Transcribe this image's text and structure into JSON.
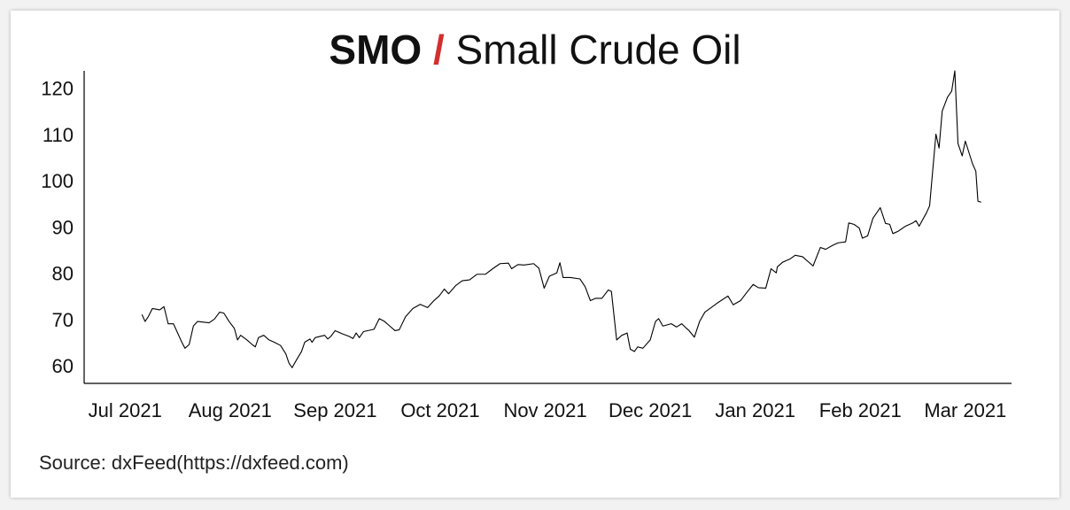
{
  "chart_data": {
    "type": "line",
    "title": {
      "ticker": "SMO",
      "separator": "/",
      "name": "Small Crude Oil"
    },
    "source": "Source: dxFeed(https://dxfeed.com)",
    "xlim": [
      -0.39,
      8.44
    ],
    "xticks": [
      {
        "value": 0,
        "label": "Jul 2021"
      },
      {
        "value": 1,
        "label": "Aug 2021"
      },
      {
        "value": 2,
        "label": "Sep 2021"
      },
      {
        "value": 3,
        "label": "Oct 2021"
      },
      {
        "value": 4,
        "label": "Nov 2021"
      },
      {
        "value": 5,
        "label": "Dec 2021"
      },
      {
        "value": 6,
        "label": "Jan 2021"
      },
      {
        "value": 7,
        "label": "Feb 2021"
      },
      {
        "value": 8,
        "label": "Mar 2021"
      }
    ],
    "ylim": [
      56.6,
      124.2
    ],
    "yticks": [
      60,
      70,
      80,
      90,
      100,
      110,
      120
    ],
    "grid": false,
    "series": [
      {
        "name": "SMO",
        "color": "#000000",
        "x": [
          0.16,
          0.19,
          0.22,
          0.26,
          0.33,
          0.37,
          0.41,
          0.46,
          0.54,
          0.57,
          0.61,
          0.65,
          0.69,
          0.8,
          0.85,
          0.9,
          0.94,
          0.99,
          1.04,
          1.07,
          1.1,
          1.16,
          1.21,
          1.24,
          1.27,
          1.32,
          1.37,
          1.42,
          1.48,
          1.53,
          1.56,
          1.59,
          1.64,
          1.68,
          1.71,
          1.76,
          1.78,
          1.81,
          1.9,
          1.93,
          1.96,
          2.0,
          2.07,
          2.13,
          2.17,
          2.2,
          2.23,
          2.27,
          2.37,
          2.42,
          2.47,
          2.52,
          2.57,
          2.61,
          2.67,
          2.74,
          2.81,
          2.88,
          2.94,
          2.99,
          3.04,
          3.08,
          3.15,
          3.21,
          3.28,
          3.35,
          3.43,
          3.5,
          3.57,
          3.65,
          3.68,
          3.74,
          3.8,
          3.89,
          3.94,
          3.99,
          4.04,
          4.11,
          4.14,
          4.17,
          4.24,
          4.33,
          4.38,
          4.43,
          4.48,
          4.54,
          4.6,
          4.63,
          4.68,
          4.73,
          4.78,
          4.81,
          4.85,
          4.88,
          4.93,
          5.0,
          5.05,
          5.08,
          5.12,
          5.2,
          5.25,
          5.3,
          5.34,
          5.37,
          5.42,
          5.47,
          5.52,
          5.64,
          5.74,
          5.79,
          5.86,
          5.91,
          5.98,
          6.03,
          6.1,
          6.15,
          6.2,
          6.21,
          6.26,
          6.33,
          6.38,
          6.45,
          6.55,
          6.62,
          6.67,
          6.74,
          6.79,
          6.86,
          6.89,
          6.94,
          6.99,
          7.02,
          7.07,
          7.12,
          7.19,
          7.24,
          7.28,
          7.31,
          7.36,
          7.43,
          7.5,
          7.53,
          7.56,
          7.63,
          7.66,
          7.72,
          7.75,
          7.78,
          7.83,
          7.87,
          7.9,
          7.93,
          7.97,
          8.0,
          8.07,
          8.1,
          8.12,
          8.15
        ],
        "values": [
          71.5,
          70,
          71,
          72.8,
          72.5,
          73.2,
          69.5,
          69.5,
          65.5,
          64.2,
          65,
          69,
          70,
          69.7,
          70.5,
          72,
          71.8,
          70,
          68.5,
          66,
          67,
          66,
          65,
          64.5,
          66.5,
          67,
          66,
          65.5,
          64.8,
          63,
          61,
          60,
          62,
          63.5,
          65.5,
          66.2,
          65.5,
          66.5,
          67,
          66.2,
          66.8,
          68,
          67.3,
          66.8,
          66.3,
          67.5,
          66.5,
          67.8,
          68.3,
          70.6,
          70,
          69,
          68,
          68.2,
          71,
          72.8,
          73.7,
          73,
          74.5,
          75.5,
          77,
          76,
          77.8,
          78.8,
          79,
          80.2,
          80.2,
          81.4,
          82.5,
          82.6,
          81.4,
          82.3,
          82.2,
          82.5,
          81.5,
          77.2,
          79.8,
          80.5,
          82.7,
          79.5,
          79.5,
          79.2,
          77.5,
          74.5,
          75,
          75,
          76.8,
          76.5,
          66,
          67,
          67.5,
          64,
          63.5,
          64.5,
          64.2,
          66,
          70,
          70.6,
          69,
          69.5,
          68.8,
          69.5,
          68.6,
          68,
          66.6,
          70,
          72,
          74,
          75.5,
          73.6,
          74.5,
          76,
          78,
          77.3,
          77.2,
          81.4,
          80.5,
          81.8,
          82.8,
          83.5,
          84.3,
          84,
          82,
          86,
          85.6,
          86.5,
          87,
          87.2,
          91.3,
          91,
          90.2,
          88,
          88.5,
          92.3,
          94.6,
          91.2,
          91,
          89,
          89.5,
          90.6,
          91.3,
          91.8,
          90.6,
          93.5,
          95,
          110.5,
          107.5,
          115.5,
          118.5,
          119.8,
          124.2,
          108.5,
          105.8,
          109,
          104,
          102.5,
          96,
          95.8
        ]
      }
    ]
  }
}
